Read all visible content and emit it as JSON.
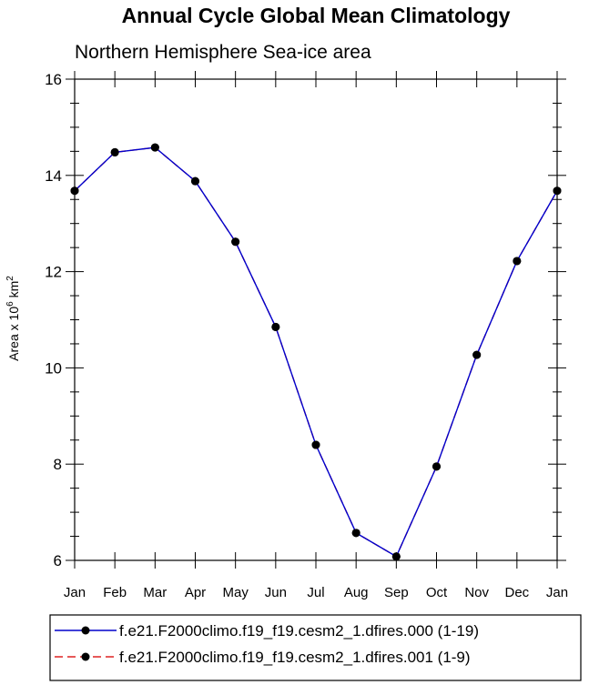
{
  "title": "Annual Cycle Global Mean Climatology",
  "subtitle": "Northern Hemisphere Sea-ice area",
  "chart_data": {
    "type": "line",
    "title": "Annual Cycle Global Mean Climatology",
    "subtitle": "Northern Hemisphere Sea-ice area",
    "xlabel": "",
    "ylabel_parts": {
      "base": "Area x 10",
      "exp1": "6",
      "unit": " km",
      "exp2": "2"
    },
    "categories": [
      "Jan",
      "Feb",
      "Mar",
      "Apr",
      "May",
      "Jun",
      "Jul",
      "Aug",
      "Sep",
      "Oct",
      "Nov",
      "Dec",
      "Jan"
    ],
    "ylim": [
      6,
      16
    ],
    "yticks": [
      6,
      8,
      10,
      12,
      14,
      16
    ],
    "grid": false,
    "legend_position": "bottom",
    "series": [
      {
        "name": "f.e21.F2000climo.f19_f19.cesm2_1.dfires.000 (1-19)",
        "color": "#0000cc",
        "dash": "solid",
        "marker": "filled-circle",
        "values": [
          13.68,
          14.48,
          14.58,
          13.88,
          12.62,
          10.85,
          8.4,
          6.57,
          6.08,
          7.95,
          10.27,
          12.22,
          13.68
        ]
      },
      {
        "name": "f.e21.F2000climo.f19_f19.cesm2_1.dfires.001 (1-9)",
        "color": "#dd2222",
        "dash": "dashed",
        "marker": "filled-circle",
        "values": [
          13.68,
          14.48,
          14.58,
          13.88,
          12.62,
          10.85,
          8.4,
          6.57,
          6.08,
          7.95,
          10.27,
          12.22,
          13.68
        ]
      }
    ]
  }
}
